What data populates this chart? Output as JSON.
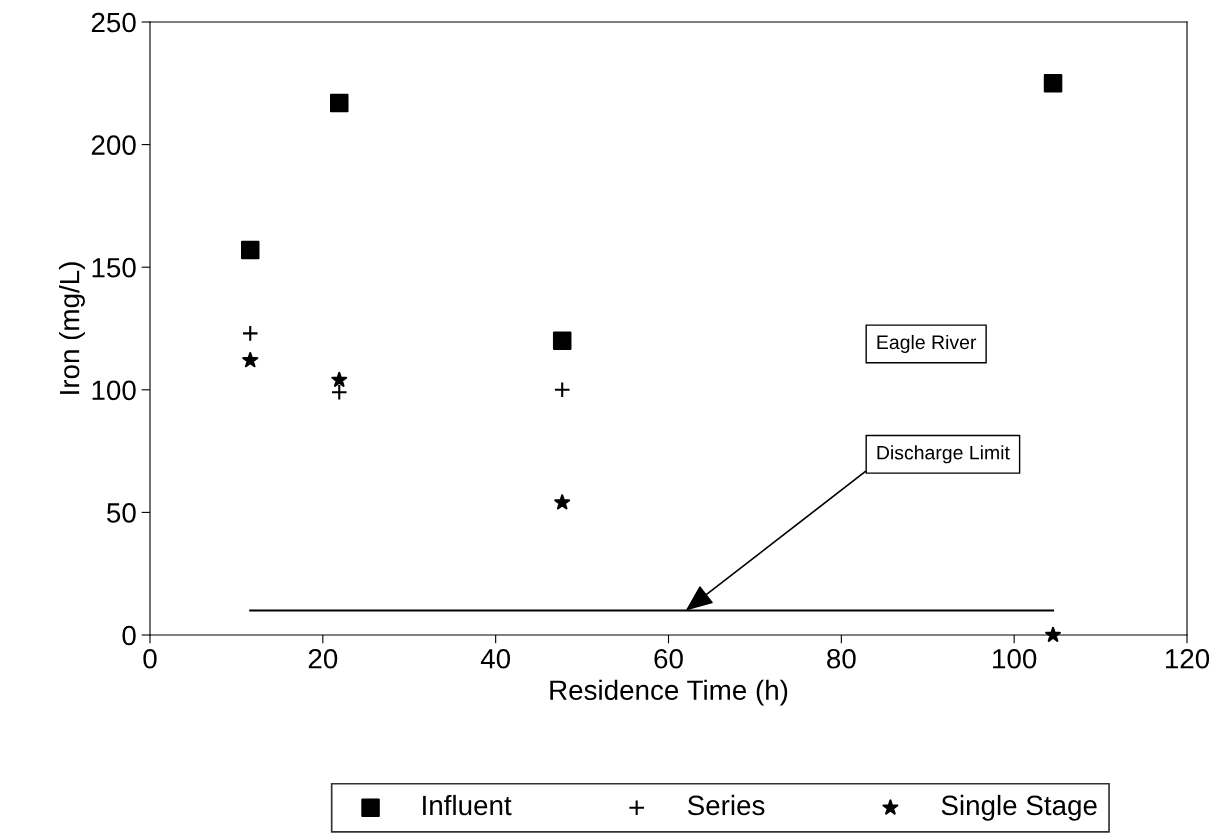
{
  "chart_data": {
    "type": "scatter",
    "xlabel": "Residence Time (h)",
    "ylabel": "Iron (mg/L)",
    "xlim": [
      0,
      120
    ],
    "ylim": [
      0,
      250
    ],
    "xticks": [
      0,
      20,
      40,
      60,
      80,
      100,
      120
    ],
    "yticks": [
      0,
      50,
      100,
      150,
      200,
      250
    ],
    "grid": false,
    "legend": "bottom",
    "series": [
      {
        "name": "Influent",
        "color": "#000000",
        "marker": "square",
        "x": [
          11.6,
          21.9,
          47.7,
          104.5
        ],
        "values": [
          157,
          217,
          120,
          225
        ]
      },
      {
        "name": "Series",
        "color": "#000000",
        "marker": "cross",
        "x": [
          11.6,
          21.9,
          47.7
        ],
        "values": [
          123,
          99,
          100
        ]
      },
      {
        "name": "Single Stage",
        "color": "#000000",
        "marker": "star",
        "x": [
          11.6,
          21.9,
          47.7,
          104.5
        ],
        "values": [
          112,
          104,
          54,
          0
        ]
      },
      {
        "type": "line",
        "color": "#000000",
        "marker": "none",
        "x": [
          11.6,
          104.5
        ],
        "values": [
          10,
          10
        ]
      }
    ],
    "annotations": [
      "Eagle River",
      {
        "text": "Discharge Limit",
        "x": 62,
        "y": 10
      }
    ]
  }
}
